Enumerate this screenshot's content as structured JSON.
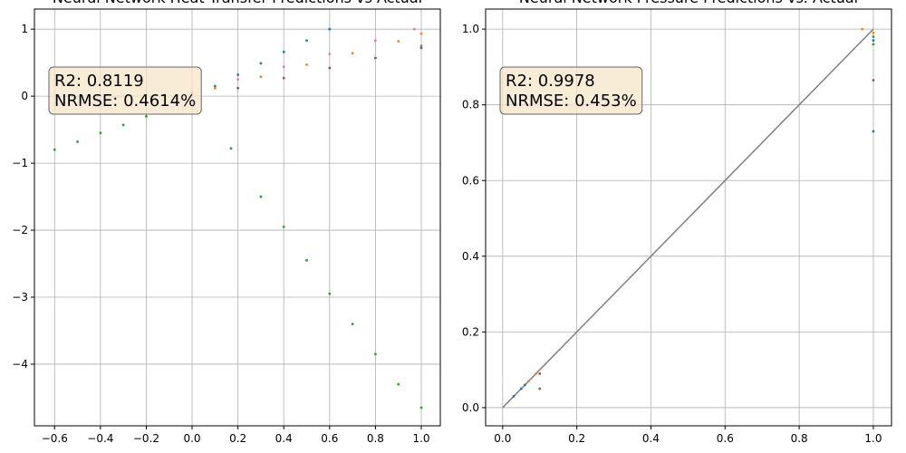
{
  "chart_data": [
    {
      "type": "scatter",
      "title": "Neural Network Heat Transfer Predictions vs Actual",
      "annotations": [
        "R2: 0.8119",
        "NRMSE: 0.4614%"
      ],
      "xlim": [
        -0.688,
        1.083
      ],
      "ylim": [
        -4.92,
        1.3
      ],
      "xticks": [
        {
          "value": -0.6,
          "label": "−0.6"
        },
        {
          "value": -0.4,
          "label": "−0.4"
        },
        {
          "value": -0.2,
          "label": "−0.2"
        },
        {
          "value": 0,
          "label": "0.0"
        },
        0.2,
        0.4,
        0.6,
        0.8,
        {
          "value": 1,
          "label": "1.0"
        }
      ],
      "yticks": [
        {
          "value": -4,
          "label": "−4"
        },
        {
          "value": -3,
          "label": "−3"
        },
        {
          "value": -2,
          "label": "−2"
        },
        {
          "value": -1,
          "label": "−1"
        },
        0,
        1
      ],
      "grid": true,
      "series": [
        {
          "color": "#1f77b4",
          "x": [
            0.1,
            0.2,
            0.3,
            0.4,
            0.5,
            0.6
          ],
          "values": [
            0.15,
            0.32,
            0.49,
            0.66,
            0.83,
            1.0
          ]
        },
        {
          "color": "#e377c2",
          "x": [
            0,
            0.2,
            0.4,
            0.6,
            0.8,
            0.97
          ],
          "values": [
            0.05,
            0.25,
            0.44,
            0.63,
            0.83,
            1.0
          ]
        },
        {
          "color": "#ff7f0e",
          "x": [
            0.1,
            0.3,
            0.5,
            0.7,
            0.9,
            1.0
          ],
          "values": [
            0.12,
            0.29,
            0.47,
            0.64,
            0.82,
            0.93
          ]
        },
        {
          "color": "#8c564b",
          "x": [
            0.2,
            0.4,
            0.6,
            0.8,
            1.0
          ],
          "values": [
            0.12,
            0.27,
            0.42,
            0.57,
            0.72
          ]
        },
        {
          "color": "#7f7f7f",
          "x": [
            1.0
          ],
          "values": [
            0.75
          ]
        },
        {
          "color": "#2ca02c",
          "x": [
            -0.6,
            -0.5,
            -0.4,
            -0.3,
            -0.2,
            0.17,
            0.3,
            0.4,
            0.5,
            0.6,
            0.7,
            0.8,
            0.9,
            1.0
          ],
          "values": [
            -0.8,
            -0.68,
            -0.55,
            -0.43,
            -0.3,
            -0.78,
            -1.5,
            -1.95,
            -2.45,
            -2.95,
            -3.4,
            -3.85,
            -4.3,
            -4.65
          ]
        }
      ]
    },
    {
      "type": "scatter",
      "title": "Neural Network Pressure Predictions vs. Actual",
      "annotations": [
        "R2: 0.9978",
        "NRMSE: 0.453%"
      ],
      "xlim": [
        -0.046,
        1.049
      ],
      "ylim": [
        -0.048,
        1.053
      ],
      "xticks": [
        {
          "value": 0,
          "label": "0.0"
        },
        0.2,
        0.4,
        0.6,
        0.8,
        {
          "value": 1,
          "label": "1.0"
        }
      ],
      "yticks": [
        {
          "value": 0,
          "label": "0.0"
        },
        0.2,
        0.4,
        0.6,
        0.8,
        {
          "value": 1,
          "label": "1.0"
        }
      ],
      "grid": true,
      "series": [
        {
          "color": "#808080",
          "style": "line",
          "x": [
            0,
            1
          ],
          "values": [
            0,
            1
          ]
        },
        {
          "color": "#1f77b4",
          "x": [
            0.03,
            0.05,
            0.06,
            1.0,
            1.0
          ],
          "values": [
            0.03,
            0.05,
            0.06,
            0.73,
            0.97
          ]
        },
        {
          "color": "#ff7f0e",
          "x": [
            0.07,
            0.09,
            0.97,
            1.0
          ],
          "values": [
            0.07,
            0.09,
            1.0,
            0.99
          ]
        },
        {
          "color": "#8c564b",
          "x": [
            0.1,
            0.1,
            1.0
          ],
          "values": [
            0.05,
            0.09,
            0.865
          ]
        },
        {
          "color": "#2ca02c",
          "x": [
            1.0,
            1.0
          ],
          "values": [
            0.96,
            0.98
          ]
        }
      ]
    }
  ]
}
